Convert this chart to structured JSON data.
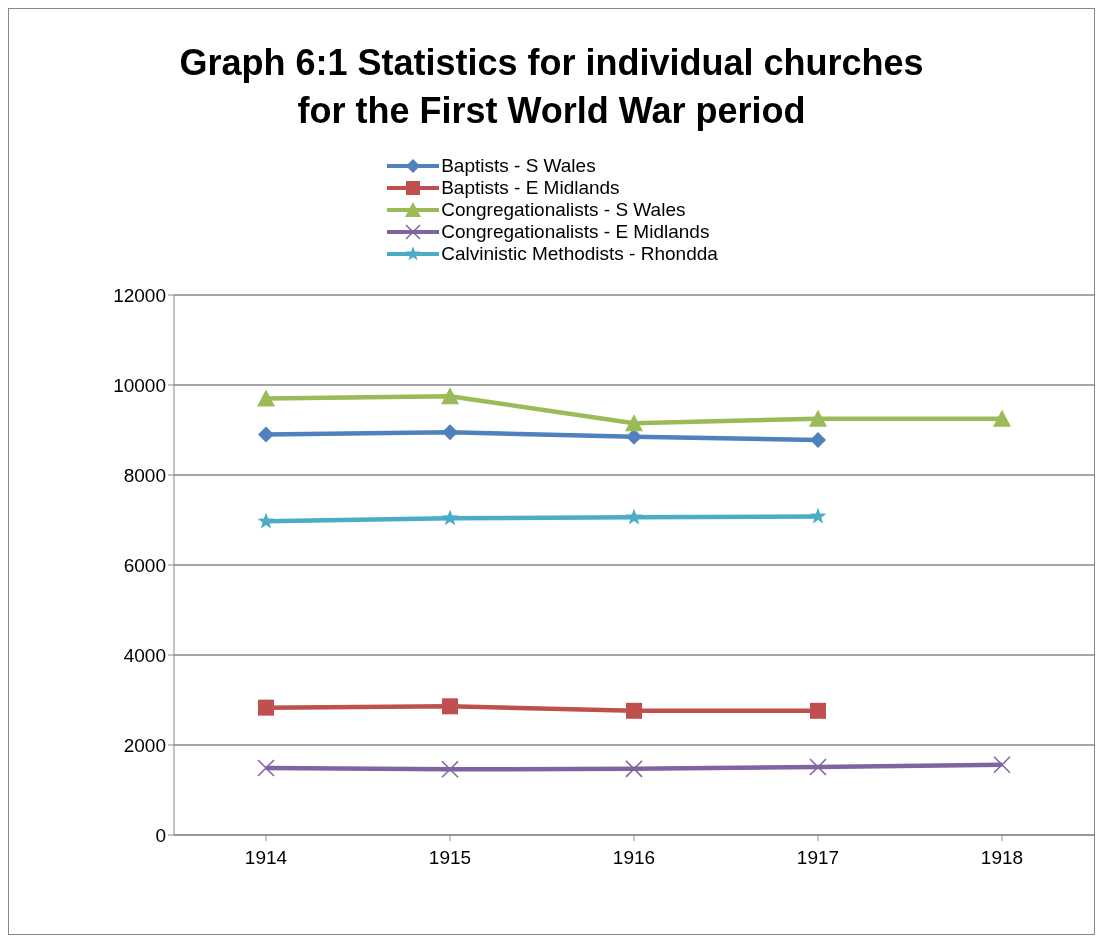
{
  "chart_data": {
    "type": "line",
    "title": "Graph 6:1  Statistics for individual churches for the First World War period",
    "categories": [
      "1914",
      "1915",
      "1916",
      "1917",
      "1918"
    ],
    "series": [
      {
        "name": "Baptists - S Wales",
        "color": "#4f81bd",
        "marker": "diamond",
        "values": [
          8900,
          8950,
          8850,
          8780,
          null
        ]
      },
      {
        "name": "Baptists - E Midlands",
        "color": "#c0504d",
        "marker": "square",
        "values": [
          2830,
          2860,
          2760,
          2760,
          null
        ]
      },
      {
        "name": "Congregationalists - S Wales",
        "color": "#9bbb59",
        "marker": "triangle",
        "values": [
          9700,
          9750,
          9150,
          9250,
          9250
        ]
      },
      {
        "name": "Congregationalists - E Midlands",
        "color": "#8064a2",
        "marker": "cross",
        "values": [
          1490,
          1460,
          1470,
          1510,
          1560
        ]
      },
      {
        "name": "Calvinistic Methodists - Rhondda",
        "color": "#4bacc6",
        "marker": "star",
        "values": [
          6970,
          7040,
          7060,
          7080,
          null
        ]
      }
    ],
    "ylim": [
      0,
      12000
    ],
    "yticks": [
      0,
      2000,
      4000,
      6000,
      8000,
      10000,
      12000
    ],
    "grid": "y",
    "legend": "top",
    "line_style": "solid"
  }
}
